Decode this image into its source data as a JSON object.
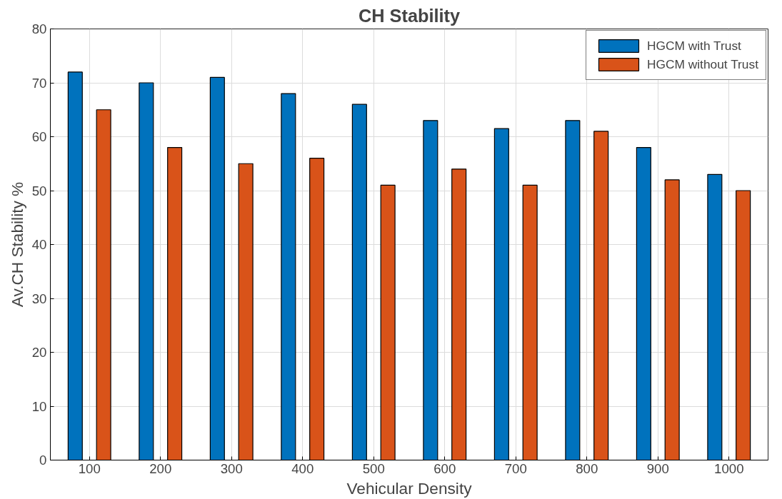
{
  "chart_data": {
    "type": "bar",
    "title": "CH Stability",
    "xlabel": "Vehicular Density",
    "ylabel": "Av.CH Stability %",
    "categories": [
      "100",
      "200",
      "300",
      "400",
      "500",
      "600",
      "700",
      "800",
      "900",
      "1000"
    ],
    "series": [
      {
        "name": "HGCM with Trust",
        "color": "#0072bd",
        "values": [
          72,
          70,
          71,
          68,
          66,
          63,
          61.5,
          63,
          58,
          53
        ]
      },
      {
        "name": "HGCM without Trust",
        "color": "#d95319",
        "values": [
          65,
          58,
          55,
          56,
          51,
          54,
          51,
          61,
          52,
          50
        ]
      }
    ],
    "ylim": [
      0,
      80
    ],
    "yticks": [
      0,
      10,
      20,
      30,
      40,
      50,
      60,
      70,
      80
    ],
    "grid": true,
    "legend": "top right"
  }
}
